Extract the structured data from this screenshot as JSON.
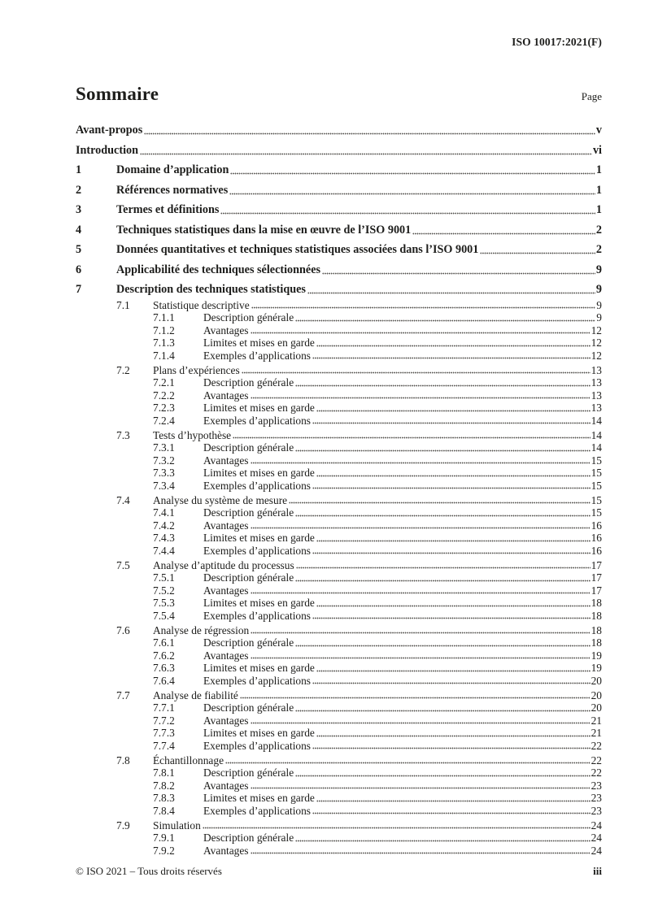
{
  "header": {
    "document_code": "ISO 10017:2021(F)"
  },
  "sommaire": {
    "title": "Sommaire",
    "page_column_label": "Page"
  },
  "toc": {
    "entries": [
      {
        "level": 1,
        "num": "",
        "label": "Avant-propos",
        "page": "v"
      },
      {
        "level": 1,
        "num": "",
        "label": "Introduction",
        "page": "vi"
      },
      {
        "level": 1,
        "num": "1",
        "label": "Domaine d’application",
        "page": "1"
      },
      {
        "level": 1,
        "num": "2",
        "label": "Références normatives",
        "page": "1"
      },
      {
        "level": 1,
        "num": "3",
        "label": "Termes et définitions",
        "page": "1"
      },
      {
        "level": 1,
        "num": "4",
        "label": "Techniques statistiques dans la mise en œuvre de l’ISO 9001",
        "page": "2"
      },
      {
        "level": 1,
        "num": "5",
        "label": "Données quantitatives et techniques statistiques associées dans l’ISO 9001",
        "page": "2"
      },
      {
        "level": 1,
        "num": "6",
        "label": "Applicabilité des techniques sélectionnées",
        "page": "9"
      },
      {
        "level": 1,
        "num": "7",
        "label": "Description des techniques statistiques",
        "page": "9"
      },
      {
        "level": 2,
        "num": "7.1",
        "label": "Statistique descriptive",
        "page": "9"
      },
      {
        "level": 3,
        "num": "7.1.1",
        "label": "Description générale",
        "page": "9"
      },
      {
        "level": 3,
        "num": "7.1.2",
        "label": "Avantages",
        "page": "12"
      },
      {
        "level": 3,
        "num": "7.1.3",
        "label": "Limites et mises en garde",
        "page": "12"
      },
      {
        "level": 3,
        "num": "7.1.4",
        "label": "Exemples d’applications",
        "page": "12"
      },
      {
        "level": 2,
        "num": "7.2",
        "label": "Plans d’expériences",
        "page": "13"
      },
      {
        "level": 3,
        "num": "7.2.1",
        "label": "Description générale",
        "page": "13"
      },
      {
        "level": 3,
        "num": "7.2.2",
        "label": "Avantages",
        "page": "13"
      },
      {
        "level": 3,
        "num": "7.2.3",
        "label": "Limites et mises en garde",
        "page": "13"
      },
      {
        "level": 3,
        "num": "7.2.4",
        "label": "Exemples d’applications",
        "page": "14"
      },
      {
        "level": 2,
        "num": "7.3",
        "label": "Tests d’hypothèse",
        "page": "14"
      },
      {
        "level": 3,
        "num": "7.3.1",
        "label": "Description générale",
        "page": "14"
      },
      {
        "level": 3,
        "num": "7.3.2",
        "label": "Avantages",
        "page": "15"
      },
      {
        "level": 3,
        "num": "7.3.3",
        "label": "Limites et mises en garde",
        "page": "15"
      },
      {
        "level": 3,
        "num": "7.3.4",
        "label": "Exemples d’applications",
        "page": "15"
      },
      {
        "level": 2,
        "num": "7.4",
        "label": "Analyse du système de mesure",
        "page": "15"
      },
      {
        "level": 3,
        "num": "7.4.1",
        "label": "Description générale",
        "page": "15"
      },
      {
        "level": 3,
        "num": "7.4.2",
        "label": "Avantages",
        "page": "16"
      },
      {
        "level": 3,
        "num": "7.4.3",
        "label": "Limites et mises en garde",
        "page": "16"
      },
      {
        "level": 3,
        "num": "7.4.4",
        "label": "Exemples d’applications",
        "page": "16"
      },
      {
        "level": 2,
        "num": "7.5",
        "label": "Analyse d’aptitude du processus",
        "page": "17"
      },
      {
        "level": 3,
        "num": "7.5.1",
        "label": "Description générale",
        "page": "17"
      },
      {
        "level": 3,
        "num": "7.5.2",
        "label": "Avantages",
        "page": "17"
      },
      {
        "level": 3,
        "num": "7.5.3",
        "label": "Limites et mises en garde",
        "page": "18"
      },
      {
        "level": 3,
        "num": "7.5.4",
        "label": "Exemples d’applications",
        "page": "18"
      },
      {
        "level": 2,
        "num": "7.6",
        "label": "Analyse de régression",
        "page": "18"
      },
      {
        "level": 3,
        "num": "7.6.1",
        "label": "Description générale",
        "page": "18"
      },
      {
        "level": 3,
        "num": "7.6.2",
        "label": "Avantages",
        "page": "19"
      },
      {
        "level": 3,
        "num": "7.6.3",
        "label": "Limites et mises en garde",
        "page": "19"
      },
      {
        "level": 3,
        "num": "7.6.4",
        "label": "Exemples d’applications",
        "page": "20"
      },
      {
        "level": 2,
        "num": "7.7",
        "label": "Analyse de fiabilité",
        "page": "20"
      },
      {
        "level": 3,
        "num": "7.7.1",
        "label": "Description générale",
        "page": "20"
      },
      {
        "level": 3,
        "num": "7.7.2",
        "label": "Avantages",
        "page": "21"
      },
      {
        "level": 3,
        "num": "7.7.3",
        "label": "Limites et mises en garde",
        "page": "21"
      },
      {
        "level": 3,
        "num": "7.7.4",
        "label": "Exemples d’applications",
        "page": "22"
      },
      {
        "level": 2,
        "num": "7.8",
        "label": "Échantillonnage",
        "page": "22"
      },
      {
        "level": 3,
        "num": "7.8.1",
        "label": "Description générale",
        "page": "22"
      },
      {
        "level": 3,
        "num": "7.8.2",
        "label": "Avantages",
        "page": "23"
      },
      {
        "level": 3,
        "num": "7.8.3",
        "label": "Limites et mises en garde",
        "page": "23"
      },
      {
        "level": 3,
        "num": "7.8.4",
        "label": "Exemples d’applications",
        "page": "23"
      },
      {
        "level": 2,
        "num": "7.9",
        "label": "Simulation",
        "page": "24"
      },
      {
        "level": 3,
        "num": "7.9.1",
        "label": "Description générale",
        "page": "24"
      },
      {
        "level": 3,
        "num": "7.9.2",
        "label": "Avantages",
        "page": "24"
      }
    ]
  },
  "footer": {
    "copyright": "© ISO 2021 – Tous droits réservés",
    "page_number": "iii"
  }
}
